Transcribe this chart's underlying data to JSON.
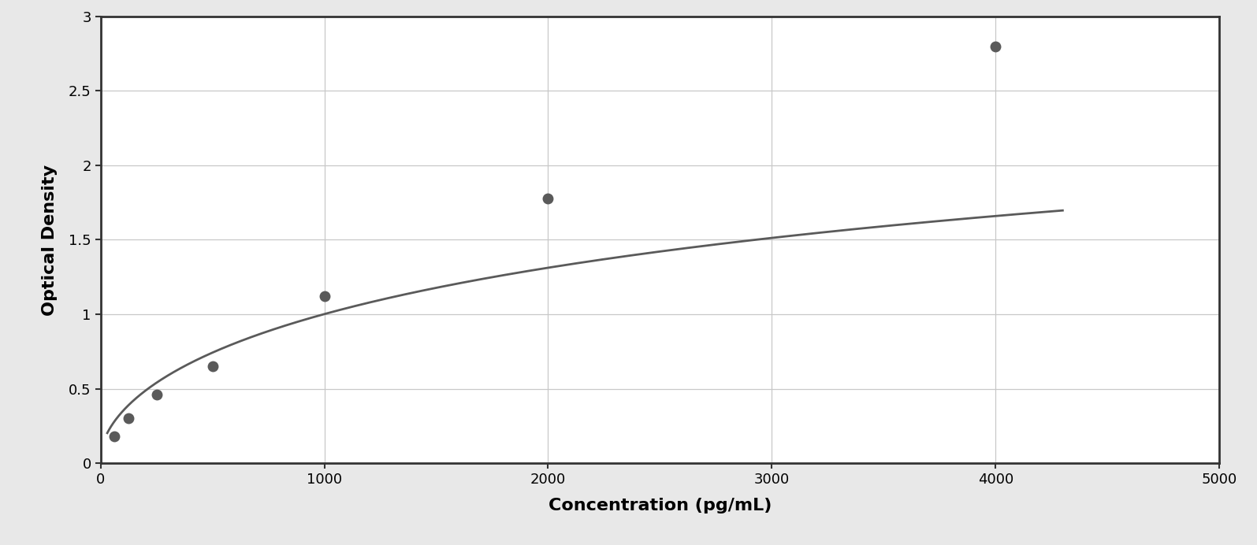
{
  "x_data": [
    62.5,
    125,
    250,
    500,
    1000,
    2000,
    4000
  ],
  "y_data": [
    0.18,
    0.3,
    0.46,
    0.65,
    1.12,
    1.78,
    2.8
  ],
  "xlabel": "Concentration (pg/mL)",
  "ylabel": "Optical Density",
  "xlim": [
    0,
    5000
  ],
  "ylim": [
    0,
    3.0
  ],
  "xticks": [
    0,
    1000,
    2000,
    3000,
    4000,
    5000
  ],
  "yticks": [
    0,
    0.5,
    1.0,
    1.5,
    2.0,
    2.5,
    3.0
  ],
  "ytick_labels": [
    "0",
    "0.5",
    "1",
    "1.5",
    "2",
    "2.5",
    "3"
  ],
  "line_color": "#5a5a5a",
  "marker_color": "#5a5a5a",
  "marker_size": 9,
  "line_width": 2.0,
  "grid_color": "#c8c8c8",
  "background_color": "#ffffff",
  "figure_background": "#e8e8e8",
  "xlabel_fontsize": 16,
  "ylabel_fontsize": 16,
  "tick_fontsize": 13,
  "xlabel_fontweight": "bold",
  "ylabel_fontweight": "bold",
  "border_color": "#333333",
  "border_width": 2.0
}
